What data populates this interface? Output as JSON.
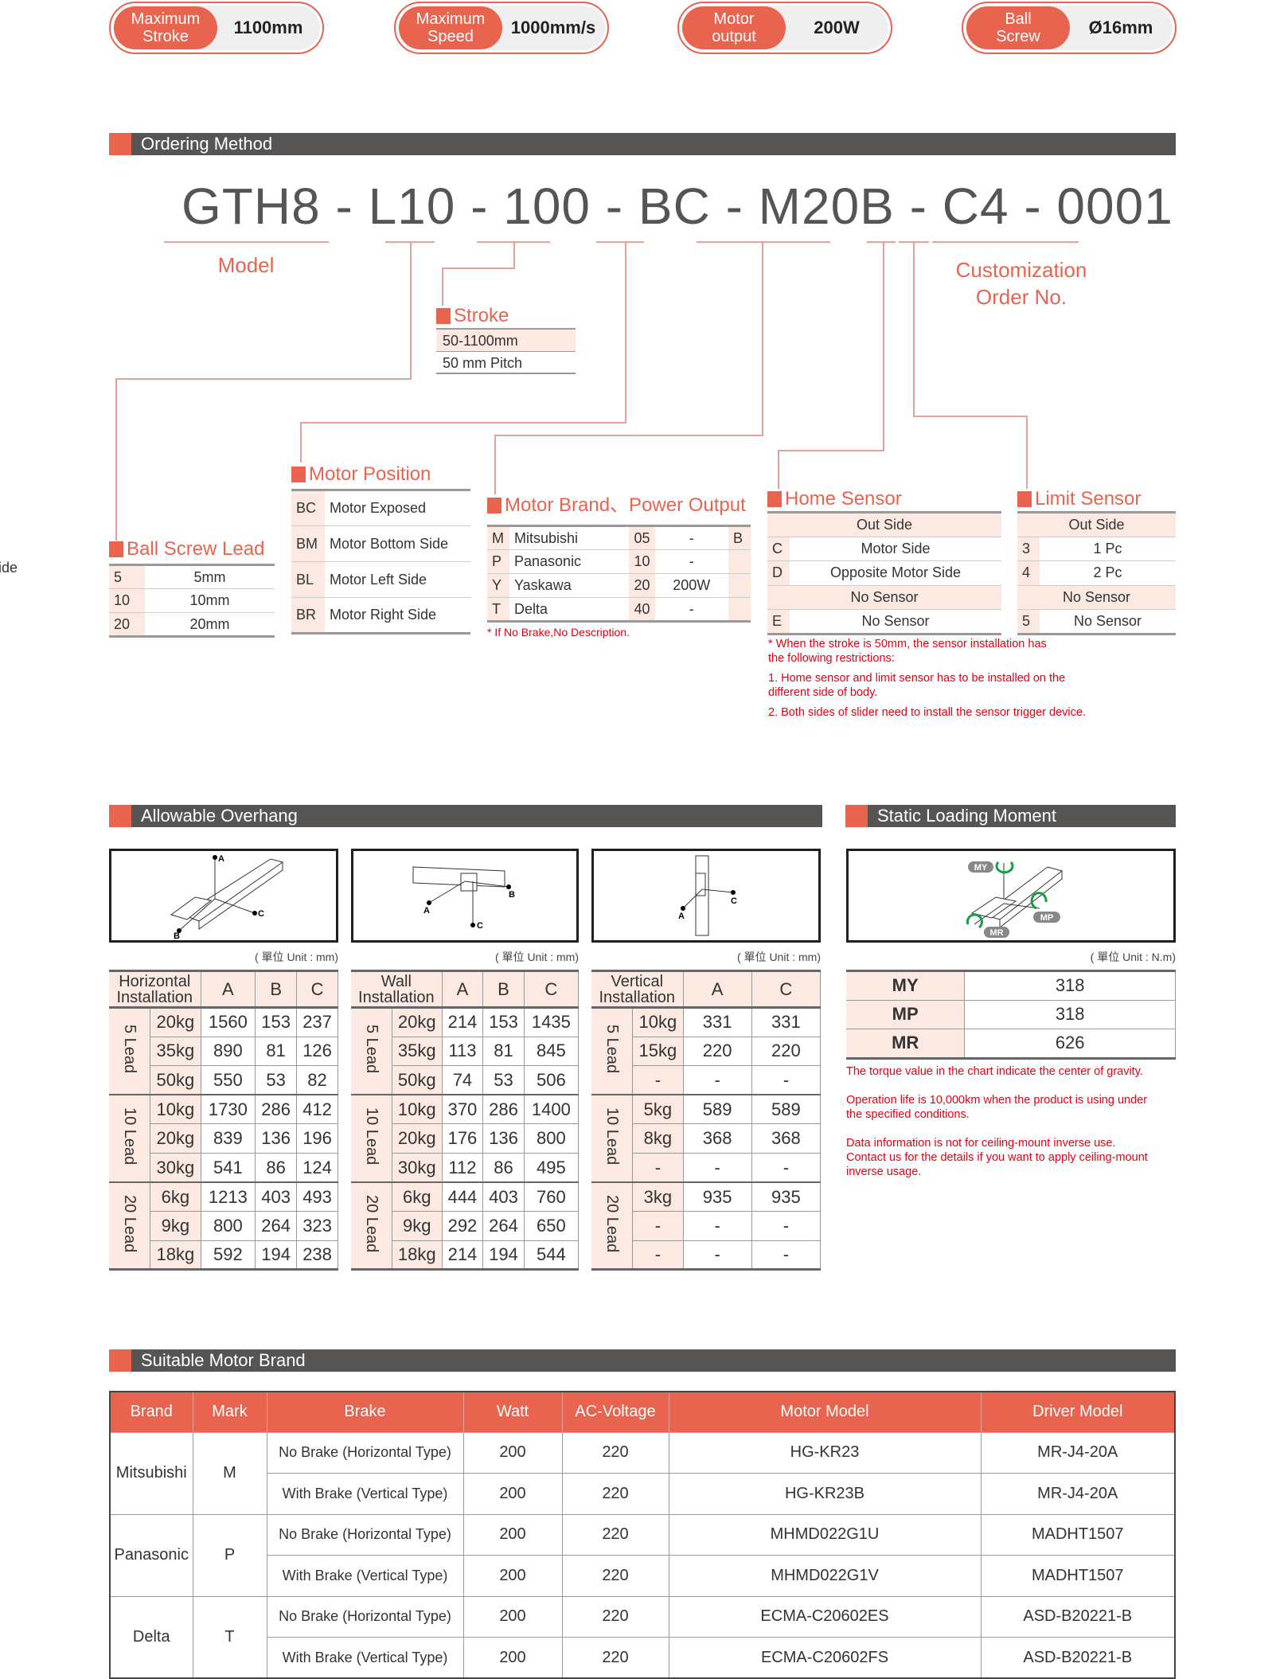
{
  "specs": [
    {
      "label": "Maximum\nStroke",
      "value": "1100mm"
    },
    {
      "label": "Maximum\nSpeed",
      "value": "1000mm/s"
    },
    {
      "label": "Motor\noutput",
      "value": "200W"
    },
    {
      "label": "Ball\nScrew",
      "value": "Ø16mm"
    }
  ],
  "ordering": {
    "banner": "Ordering Method",
    "code": "GTH8 - L10 - 100 - BC - M20B - C4 - 0001",
    "model_label": "Model",
    "custom_label": "Customization\nOrder No.",
    "side_fragment": "Side",
    "stroke": {
      "title": "Stroke",
      "rows": [
        "50-1100mm",
        "50 mm Pitch"
      ]
    },
    "lead": {
      "title": "Ball Screw Lead",
      "rows": [
        [
          "5",
          "5mm"
        ],
        [
          "10",
          "10mm"
        ],
        [
          "20",
          "20mm"
        ]
      ]
    },
    "position": {
      "title": "Motor Position",
      "rows": [
        [
          "BC",
          "Motor Exposed"
        ],
        [
          "BM",
          "Motor Bottom Side"
        ],
        [
          "BL",
          "Motor Left Side"
        ],
        [
          "BR",
          "Motor Right Side"
        ]
      ]
    },
    "brand": {
      "title": "Motor Brand、Power Output",
      "rows": [
        [
          "M",
          "Mitsubishi",
          "05",
          "-",
          "B"
        ],
        [
          "P",
          "Panasonic",
          "10",
          "-",
          ""
        ],
        [
          "Y",
          "Yaskawa",
          "20",
          "200W",
          ""
        ],
        [
          "T",
          "Delta",
          "40",
          "-",
          ""
        ]
      ],
      "note": "* If No Brake,No Description."
    },
    "home": {
      "title": "Home Sensor",
      "rows": [
        [
          "",
          "Out Side"
        ],
        [
          "C",
          "Motor Side"
        ],
        [
          "D",
          "Opposite Motor Side"
        ],
        [
          "",
          "No Sensor"
        ],
        [
          "E",
          "No Sensor"
        ]
      ]
    },
    "limit": {
      "title": "Limit Sensor",
      "rows": [
        [
          "",
          "Out Side"
        ],
        [
          "3",
          "1 Pc"
        ],
        [
          "4",
          "2 Pc"
        ],
        [
          "",
          "No Sensor"
        ],
        [
          "5",
          "No Sensor"
        ]
      ]
    },
    "sensor_notes": [
      "*  When the stroke is 50mm, the sensor installation has\n    the following restrictions:",
      "1.  Home sensor and limit sensor has to be installed on the\n     different side of body.",
      "2.  Both sides of slider need to install the sensor trigger device."
    ]
  },
  "overhang": {
    "banner": "Allowable Overhang",
    "unit": "( 單位 Unit : mm)",
    "tables": [
      {
        "header": "Horizontal\nInstallation",
        "cols": [
          "A",
          "B",
          "C"
        ],
        "labels": [
          "A",
          "B",
          "C"
        ],
        "groups": [
          {
            "lead": "5 Lead",
            "rows": [
              [
                "20kg",
                "1560",
                "153",
                "237"
              ],
              [
                "35kg",
                "890",
                "81",
                "126"
              ],
              [
                "50kg",
                "550",
                "53",
                "82"
              ]
            ]
          },
          {
            "lead": "10 Lead",
            "rows": [
              [
                "10kg",
                "1730",
                "286",
                "412"
              ],
              [
                "20kg",
                "839",
                "136",
                "196"
              ],
              [
                "30kg",
                "541",
                "86",
                "124"
              ]
            ]
          },
          {
            "lead": "20 Lead",
            "rows": [
              [
                "6kg",
                "1213",
                "403",
                "493"
              ],
              [
                "9kg",
                "800",
                "264",
                "323"
              ],
              [
                "18kg",
                "592",
                "194",
                "238"
              ]
            ]
          }
        ]
      },
      {
        "header": "Wall\nInstallation",
        "cols": [
          "A",
          "B",
          "C"
        ],
        "labels": [
          "A",
          "B",
          "C"
        ],
        "groups": [
          {
            "lead": "5 Lead",
            "rows": [
              [
                "20kg",
                "214",
                "153",
                "1435"
              ],
              [
                "35kg",
                "113",
                "81",
                "845"
              ],
              [
                "50kg",
                "74",
                "53",
                "506"
              ]
            ]
          },
          {
            "lead": "10 Lead",
            "rows": [
              [
                "10kg",
                "370",
                "286",
                "1400"
              ],
              [
                "20kg",
                "176",
                "136",
                "800"
              ],
              [
                "30kg",
                "112",
                "86",
                "495"
              ]
            ]
          },
          {
            "lead": "20 Lead",
            "rows": [
              [
                "6kg",
                "444",
                "403",
                "760"
              ],
              [
                "9kg",
                "292",
                "264",
                "650"
              ],
              [
                "18kg",
                "214",
                "194",
                "544"
              ]
            ]
          }
        ]
      },
      {
        "header": "Vertical\nInstallation",
        "cols": [
          "A",
          "C"
        ],
        "labels": [
          "A",
          "C"
        ],
        "groups": [
          {
            "lead": "5 Lead",
            "rows": [
              [
                "10kg",
                "331",
                "331"
              ],
              [
                "15kg",
                "220",
                "220"
              ],
              [
                "-",
                "-",
                "-"
              ]
            ]
          },
          {
            "lead": "10 Lead",
            "rows": [
              [
                "5kg",
                "589",
                "589"
              ],
              [
                "8kg",
                "368",
                "368"
              ],
              [
                "-",
                "-",
                "-"
              ]
            ]
          },
          {
            "lead": "20 Lead",
            "rows": [
              [
                "3kg",
                "935",
                "935"
              ],
              [
                "-",
                "-",
                "-"
              ],
              [
                "-",
                "-",
                "-"
              ]
            ]
          }
        ]
      }
    ]
  },
  "static": {
    "banner": "Static Loading Moment",
    "unit": "( 單位 Unit : N.m)",
    "labels": [
      "MY",
      "MP",
      "MR"
    ],
    "rows": [
      [
        "MY",
        "318"
      ],
      [
        "MP",
        "318"
      ],
      [
        "MR",
        "626"
      ]
    ],
    "notes": [
      "The torque value in the chart indicate the center of gravity.",
      "Operation life is 10,000km when the product is using under\nthe  specified conditions.",
      "Data information is not for ceiling-mount inverse use.\nContact us for the details if you want to apply ceiling-mount\ninverse usage."
    ]
  },
  "motors": {
    "banner": "Suitable Motor Brand",
    "headers": [
      "Brand",
      "Mark",
      "Brake",
      "Watt",
      "AC-Voltage",
      "Motor Model",
      "Driver Model"
    ],
    "groups": [
      {
        "brand": "Mitsubishi",
        "mark": "M",
        "rows": [
          [
            "No Brake (Horizontal Type)",
            "200",
            "220",
            "HG-KR23",
            "MR-J4-20A"
          ],
          [
            "With Brake (Vertical Type)",
            "200",
            "220",
            "HG-KR23B",
            "MR-J4-20A"
          ]
        ]
      },
      {
        "brand": "Panasonic",
        "mark": "P",
        "rows": [
          [
            "No Brake (Horizontal Type)",
            "200",
            "220",
            "MHMD022G1U",
            "MADHT1507"
          ],
          [
            "With Brake (Vertical Type)",
            "200",
            "220",
            "MHMD022G1V",
            "MADHT1507"
          ]
        ]
      },
      {
        "brand": "Delta",
        "mark": "T",
        "rows": [
          [
            "No Brake (Horizontal Type)",
            "200",
            "220",
            "ECMA-C20602ES",
            "ASD-B20221-B"
          ],
          [
            "With Brake (Vertical Type)",
            "200",
            "220",
            "ECMA-C20602FS",
            "ASD-B20221-B"
          ]
        ]
      }
    ]
  },
  "colors": {
    "accent": "#e8644f",
    "pink": "#fbe9e2",
    "banner": "#575553",
    "note_red": "#e60012"
  }
}
